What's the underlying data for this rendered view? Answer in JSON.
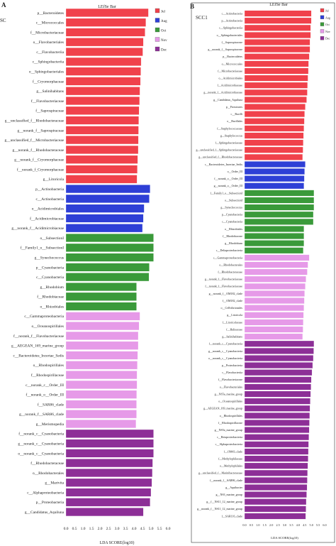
{
  "panels": [
    {
      "letter": "A",
      "side_label": "SC",
      "legend_title": "LEfSe Bar"
    },
    {
      "letter": "B",
      "side_label": "SCC1",
      "legend_title": "LEfSe Bar"
    }
  ],
  "colors": {
    "Jul": "#f0414b",
    "Aug": "#2e3fd6",
    "Oct": "#3a9a3a",
    "Nov": "#e69ae8",
    "Dec": "#8d2f97"
  },
  "chart_data": [
    {
      "type": "bar",
      "orientation": "horizontal",
      "title": "LEfSe Bar",
      "xlabel": "LDA SCORE(log10)",
      "ylabel": "",
      "xlim": [
        0,
        6
      ],
      "xticks": [
        "0.0",
        "0.5",
        "1.0",
        "1.5",
        "2.0",
        "2.5",
        "3.0",
        "3.5",
        "4.0",
        "4.5",
        "5.0",
        "5.5",
        "6.0"
      ],
      "legend": [
        "Jul",
        "Aug",
        "Oct",
        "Nov",
        "Dec"
      ],
      "legend_position": "top-right",
      "bars": [
        {
          "label": "p__Bacteroidetes",
          "value": 4.85,
          "group": "Jul"
        },
        {
          "label": "c__Micrococcales",
          "value": 4.7,
          "group": "Jul"
        },
        {
          "label": "f__Microbacteriaceae",
          "value": 4.65,
          "group": "Jul"
        },
        {
          "label": "o__Flavobacteriales",
          "value": 4.55,
          "group": "Jul"
        },
        {
          "label": "c__Flavobacteriia",
          "value": 4.52,
          "group": "Jul"
        },
        {
          "label": "c__Sphingobacteriia",
          "value": 4.42,
          "group": "Jul"
        },
        {
          "label": "o__Sphingobacteriales",
          "value": 4.4,
          "group": "Jul"
        },
        {
          "label": "f__Cryomorphaceae",
          "value": 4.38,
          "group": "Jul"
        },
        {
          "label": "g__Salinihabitans",
          "value": 4.35,
          "group": "Jul"
        },
        {
          "label": "f__Flavobacteriaceae",
          "value": 4.33,
          "group": "Jul"
        },
        {
          "label": "f__Saprospiraceae",
          "value": 4.3,
          "group": "Jul"
        },
        {
          "label": "g__unclassified_f__Rhodobacteraceae",
          "value": 4.28,
          "group": "Jul"
        },
        {
          "label": "g__norank_f__Saprospiraceae",
          "value": 4.27,
          "group": "Jul"
        },
        {
          "label": "g__unclassified_f__Microbacteriaceae",
          "value": 4.26,
          "group": "Jul"
        },
        {
          "label": "g__norank_f__Rhodobacteraceae",
          "value": 4.25,
          "group": "Jul"
        },
        {
          "label": "g__norank_f__Cryomorphaceae",
          "value": 4.22,
          "group": "Jul"
        },
        {
          "label": "f__norank_f_Cryomorphaceae",
          "value": 4.2,
          "group": "Jul"
        },
        {
          "label": "g__Litoricola",
          "value": 4.18,
          "group": "Jul"
        },
        {
          "label": "p__Actinobacteria",
          "value": 4.95,
          "group": "Aug"
        },
        {
          "label": "c__Actinobacteria",
          "value": 4.9,
          "group": "Aug"
        },
        {
          "label": "o__Acidimicrobiales",
          "value": 4.6,
          "group": "Aug"
        },
        {
          "label": "f__Acidimicrobiaceae",
          "value": 4.55,
          "group": "Aug"
        },
        {
          "label": "g__norank_f__Acidimicrobiaceae",
          "value": 4.5,
          "group": "Aug"
        },
        {
          "label": "o__SubsectionI",
          "value": 5.15,
          "group": "Oct"
        },
        {
          "label": "f__Family1_o__SubsectionI",
          "value": 5.15,
          "group": "Oct"
        },
        {
          "label": "g__Synechococcus",
          "value": 5.15,
          "group": "Oct"
        },
        {
          "label": "p__Cyanobacteria",
          "value": 4.9,
          "group": "Oct"
        },
        {
          "label": "c__Cyanobacteria",
          "value": 4.88,
          "group": "Oct"
        },
        {
          "label": "g__Rhodobium",
          "value": 4.15,
          "group": "Oct"
        },
        {
          "label": "f__Rhodobiaceae",
          "value": 4.15,
          "group": "Oct"
        },
        {
          "label": "o__Rhizobiales",
          "value": 4.15,
          "group": "Oct"
        },
        {
          "label": "c__Gammaproteobacteria",
          "value": 4.35,
          "group": "Nov"
        },
        {
          "label": "o__Oceanospirillales",
          "value": 4.3,
          "group": "Nov"
        },
        {
          "label": "f__norank_f__Flavobacteriaceae",
          "value": 4.25,
          "group": "Nov"
        },
        {
          "label": "g__AEGEAN_169_marine_group",
          "value": 4.25,
          "group": "Nov"
        },
        {
          "label": "c__Bacteroidetes_Incertae_Sedis",
          "value": 4.22,
          "group": "Nov"
        },
        {
          "label": "o__Rhodospirillales",
          "value": 4.2,
          "group": "Nov"
        },
        {
          "label": "f__Rhodospirillaceae",
          "value": 4.18,
          "group": "Nov"
        },
        {
          "label": "c__norank_c__Order_III",
          "value": 4.18,
          "group": "Nov"
        },
        {
          "label": "f__norank_o__Order_III",
          "value": 4.16,
          "group": "Nov"
        },
        {
          "label": "f__SAR86_clade",
          "value": 4.15,
          "group": "Nov"
        },
        {
          "label": "g__norank_f__SAR86_clade",
          "value": 4.15,
          "group": "Nov"
        },
        {
          "label": "g__Merismopedia",
          "value": 4.12,
          "group": "Nov"
        },
        {
          "label": "f__norank_c__Cyanobacteria",
          "value": 5.15,
          "group": "Dec"
        },
        {
          "label": "g__norank_c__Cyanobacteria",
          "value": 5.15,
          "group": "Dec"
        },
        {
          "label": "o__norank_c__Cyanobacteria",
          "value": 5.15,
          "group": "Dec"
        },
        {
          "label": "f__Rhodobacteraceae",
          "value": 5.1,
          "group": "Dec"
        },
        {
          "label": "o__Rhodobacterales",
          "value": 5.08,
          "group": "Dec"
        },
        {
          "label": "g__Marivita",
          "value": 5.05,
          "group": "Dec"
        },
        {
          "label": "c__Alphaproteobacteria",
          "value": 5.0,
          "group": "Dec"
        },
        {
          "label": "p__Proteobacteria",
          "value": 4.95,
          "group": "Dec"
        },
        {
          "label": "g__Candidatus_Aquiluna",
          "value": 4.55,
          "group": "Dec"
        }
      ]
    },
    {
      "type": "bar",
      "orientation": "horizontal",
      "title": "LEfSe Bar",
      "xlabel": "LDA SCORE(log10)",
      "ylabel": "",
      "xlim": [
        0,
        6
      ],
      "xticks": [
        "0.0",
        "0.5",
        "1.0",
        "1.5",
        "2.0",
        "2.5",
        "3.0",
        "3.5",
        "4.0",
        "4.5",
        "5.0",
        "5.5",
        "6.0"
      ],
      "legend": [
        "Jul",
        "Aug",
        "Oct",
        "Nov",
        "Dec"
      ],
      "legend_position": "top-right",
      "bars": [
        {
          "label": "c__Actinobacteria",
          "value": 5.0,
          "group": "Jul"
        },
        {
          "label": "p__Actinobacteria",
          "value": 5.0,
          "group": "Jul"
        },
        {
          "label": "c__Sphingobacteriia",
          "value": 4.95,
          "group": "Jul"
        },
        {
          "label": "o__Sphingobacteriales",
          "value": 4.95,
          "group": "Jul"
        },
        {
          "label": "f__Saprospiraceae",
          "value": 4.9,
          "group": "Jul"
        },
        {
          "label": "g__norank_f__Saprospiraceae",
          "value": 4.9,
          "group": "Jul"
        },
        {
          "label": "p__Bacteroidetes",
          "value": 4.85,
          "group": "Jul"
        },
        {
          "label": "o__Micrococcales",
          "value": 4.8,
          "group": "Jul"
        },
        {
          "label": "f__Microbacteriaceae",
          "value": 4.78,
          "group": "Jul"
        },
        {
          "label": "o__Acidimicrobiales",
          "value": 4.75,
          "group": "Jul"
        },
        {
          "label": "f__Acidimicrobiaceae",
          "value": 4.72,
          "group": "Jul"
        },
        {
          "label": "g__norank_f__Acidimicrobiaceae",
          "value": 4.7,
          "group": "Jul"
        },
        {
          "label": "g__Candidatus_Aquiluna",
          "value": 4.65,
          "group": "Jul"
        },
        {
          "label": "p__Firmicutes",
          "value": 4.55,
          "group": "Jul"
        },
        {
          "label": "c__Bacilli",
          "value": 4.5,
          "group": "Jul"
        },
        {
          "label": "o__Bacillales",
          "value": 4.48,
          "group": "Jul"
        },
        {
          "label": "f__Staphylococcaceae",
          "value": 4.45,
          "group": "Jul"
        },
        {
          "label": "g__Staphylococcus",
          "value": 4.42,
          "group": "Jul"
        },
        {
          "label": "f__Sphingobacteriaceae",
          "value": 4.4,
          "group": "Jul"
        },
        {
          "label": "g__unclassified_f__Sphingobacteriaceae",
          "value": 4.38,
          "group": "Jul"
        },
        {
          "label": "g__unclassified_f__Rhodobacteraceae",
          "value": 4.35,
          "group": "Jul"
        },
        {
          "label": "c__Bacteroidetes_Incertae_Sedis",
          "value": 4.55,
          "group": "Aug"
        },
        {
          "label": "o__Order_III",
          "value": 4.5,
          "group": "Aug"
        },
        {
          "label": "f__norank_o__Order_III",
          "value": 4.48,
          "group": "Aug"
        },
        {
          "label": "g__norank_o__Order_III",
          "value": 4.45,
          "group": "Aug"
        },
        {
          "label": "f__Family1_o__SubsectionI",
          "value": 5.2,
          "group": "Oct"
        },
        {
          "label": "o__SubsectionI",
          "value": 5.2,
          "group": "Oct"
        },
        {
          "label": "g__Synechococcus",
          "value": 5.2,
          "group": "Oct"
        },
        {
          "label": "p__Cyanobacteria",
          "value": 5.15,
          "group": "Oct"
        },
        {
          "label": "c__Cyanobacteria",
          "value": 5.15,
          "group": "Oct"
        },
        {
          "label": "o__Rhizobiales",
          "value": 4.45,
          "group": "Oct"
        },
        {
          "label": "f__Rhodobiaceae",
          "value": 4.45,
          "group": "Oct"
        },
        {
          "label": "g__Rhodobium",
          "value": 4.45,
          "group": "Oct"
        },
        {
          "label": "c__Deltaproteobacteria",
          "value": 4.4,
          "group": "Oct"
        },
        {
          "label": "c__Gammaproteobacteria",
          "value": 4.85,
          "group": "Nov"
        },
        {
          "label": "o__Rhodobacterales",
          "value": 4.75,
          "group": "Nov"
        },
        {
          "label": "f__Rhodobacteraceae",
          "value": 4.7,
          "group": "Nov"
        },
        {
          "label": "g__norank_f__Flavobacteriaceae",
          "value": 4.6,
          "group": "Nov"
        },
        {
          "label": "f__norank_f__Flavobacteriaceae",
          "value": 4.55,
          "group": "Nov"
        },
        {
          "label": "g__norank_f__OM182_clade",
          "value": 4.5,
          "group": "Nov"
        },
        {
          "label": "f__OM182_clade",
          "value": 4.48,
          "group": "Nov"
        },
        {
          "label": "o__Cellvibrionales",
          "value": 4.45,
          "group": "Nov"
        },
        {
          "label": "g__Litoricola",
          "value": 4.42,
          "group": "Nov"
        },
        {
          "label": "f__Litoricolaceae",
          "value": 4.4,
          "group": "Nov"
        },
        {
          "label": "f__Halieaceae",
          "value": 4.38,
          "group": "Nov"
        },
        {
          "label": "g__Salinihabitans",
          "value": 4.35,
          "group": "Nov"
        },
        {
          "label": "f__norank_c__Cyanobacteria",
          "value": 5.2,
          "group": "Dec"
        },
        {
          "label": "g__norank_c__Cyanobacteria",
          "value": 5.18,
          "group": "Dec"
        },
        {
          "label": "o__norank_c__Cyanobacteria",
          "value": 5.15,
          "group": "Dec"
        },
        {
          "label": "p__Proteobacteria",
          "value": 5.1,
          "group": "Dec"
        },
        {
          "label": "c__Flavobacteriia",
          "value": 5.05,
          "group": "Dec"
        },
        {
          "label": "f__Flavobacteriaceae",
          "value": 5.0,
          "group": "Dec"
        },
        {
          "label": "o__Flavobacteriales",
          "value": 4.98,
          "group": "Dec"
        },
        {
          "label": "g__NS5a_marine_group",
          "value": 4.95,
          "group": "Dec"
        },
        {
          "label": "o__Oceanospirillales",
          "value": 4.92,
          "group": "Dec"
        },
        {
          "label": "g__AEGEAN_169_marine_group",
          "value": 4.9,
          "group": "Dec"
        },
        {
          "label": "o__Rhodospirillales",
          "value": 4.88,
          "group": "Dec"
        },
        {
          "label": "f__Rhodospirillaceae",
          "value": 4.86,
          "group": "Dec"
        },
        {
          "label": "g__NS5a_marine_group",
          "value": 4.84,
          "group": "Dec"
        },
        {
          "label": "c__Betaproteobacteria",
          "value": 4.82,
          "group": "Dec"
        },
        {
          "label": "c__Alphaproteobacteria",
          "value": 4.8,
          "group": "Dec"
        },
        {
          "label": "f__OM43_clade",
          "value": 4.78,
          "group": "Dec"
        },
        {
          "label": "f__Methylophilaceae",
          "value": 4.76,
          "group": "Dec"
        },
        {
          "label": "o__Methylophilales",
          "value": 4.74,
          "group": "Dec"
        },
        {
          "label": "g__unclassified_f__Marinibacteraceae",
          "value": 4.72,
          "group": "Dec"
        },
        {
          "label": "f__norank_f__SAR86_clade",
          "value": 4.7,
          "group": "Dec"
        },
        {
          "label": "g__Aquibacter",
          "value": 4.68,
          "group": "Dec"
        },
        {
          "label": "g__NS3_marine_group",
          "value": 4.65,
          "group": "Dec"
        },
        {
          "label": "g__f__NS11_12_marine_group",
          "value": 4.62,
          "group": "Dec"
        },
        {
          "label": "g__norank_f__NS11_12_marine_group",
          "value": 4.6,
          "group": "Dec"
        },
        {
          "label": "f__SAR116_clade",
          "value": 4.58,
          "group": "Dec"
        }
      ]
    }
  ]
}
